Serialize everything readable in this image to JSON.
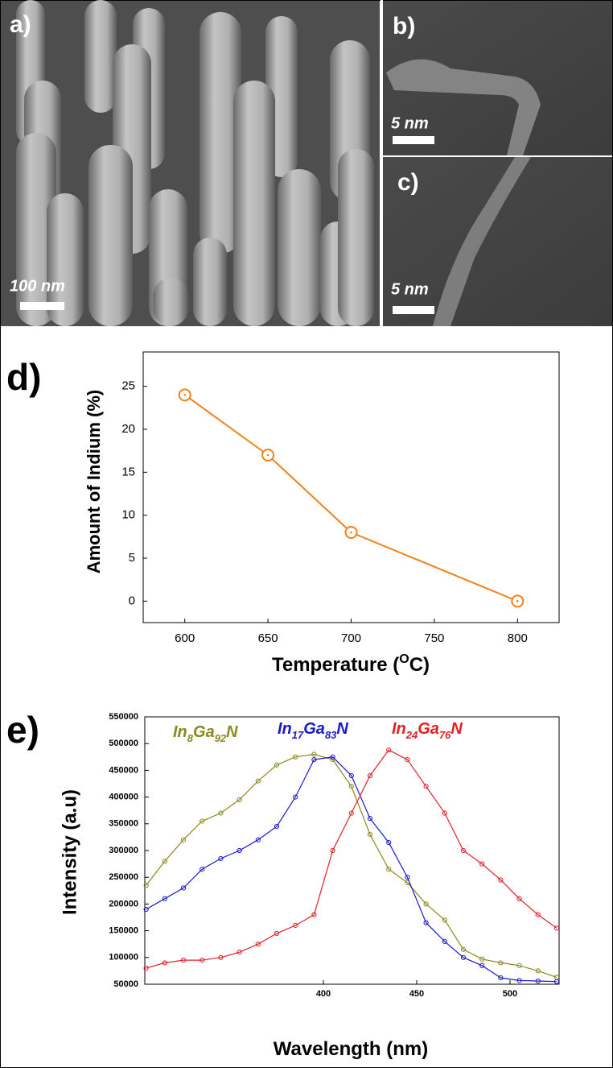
{
  "panels": [
    {
      "label": "a)",
      "scale_bar": "100 nm"
    },
    {
      "label": "b)",
      "scale_bar": "5 nm"
    },
    {
      "label": "c)",
      "scale_bar": "5 nm"
    }
  ],
  "chart_data": [
    {
      "type": "line",
      "panel_label": "d)",
      "x_label": [
        "Temperature (",
        "O",
        "C)"
      ],
      "y_label": "Amount of Indium (%)",
      "x": [
        600,
        650,
        700,
        800
      ],
      "values": [
        24,
        17,
        8,
        0
      ],
      "color": "#f0821e",
      "xlim": [
        575,
        825
      ],
      "ylim": [
        -2.5,
        29
      ],
      "xticks": [
        600,
        650,
        700,
        750,
        800
      ],
      "yticks": [
        0,
        5,
        10,
        15,
        20,
        25
      ]
    },
    {
      "type": "line",
      "panel_label": "e)",
      "x_label": [
        "Wavelength (nm)"
      ],
      "y_label": "Intensity (a.u)",
      "x": [
        305,
        315,
        325,
        335,
        345,
        355,
        365,
        375,
        385,
        395,
        405,
        415,
        425,
        435,
        445,
        455,
        465,
        475,
        485,
        495,
        505,
        515,
        525
      ],
      "series": [
        {
          "name": "In8Ga92N",
          "color": "#8a8a1c",
          "values": [
            235000,
            280000,
            320000,
            355000,
            370000,
            395000,
            430000,
            460000,
            475000,
            480000,
            470000,
            420000,
            330000,
            265000,
            240000,
            200000,
            170000,
            115000,
            97000,
            90000,
            85000,
            75000,
            63000
          ]
        },
        {
          "name": "In17Ga83N",
          "color": "#1a1ac8",
          "values": [
            190000,
            210000,
            230000,
            265000,
            285000,
            300000,
            320000,
            345000,
            400000,
            470000,
            475000,
            440000,
            360000,
            315000,
            250000,
            165000,
            130000,
            100000,
            85000,
            62000,
            57000,
            56000,
            55000
          ]
        },
        {
          "name": "In24Ga76N",
          "color": "#e42028",
          "values": [
            80000,
            90000,
            95000,
            95000,
            100000,
            110000,
            125000,
            145000,
            160000,
            180000,
            300000,
            370000,
            440000,
            488000,
            470000,
            420000,
            370000,
            300000,
            275000,
            245000,
            210000,
            180000,
            155000
          ]
        }
      ],
      "xlim": [
        304.3,
        526.3
      ],
      "ylim": [
        50000,
        550000
      ],
      "xticks": [
        400,
        450,
        500
      ],
      "yticks": [
        50000,
        100000,
        150000,
        200000,
        250000,
        300000,
        350000,
        400000,
        450000,
        500000,
        550000
      ]
    }
  ]
}
